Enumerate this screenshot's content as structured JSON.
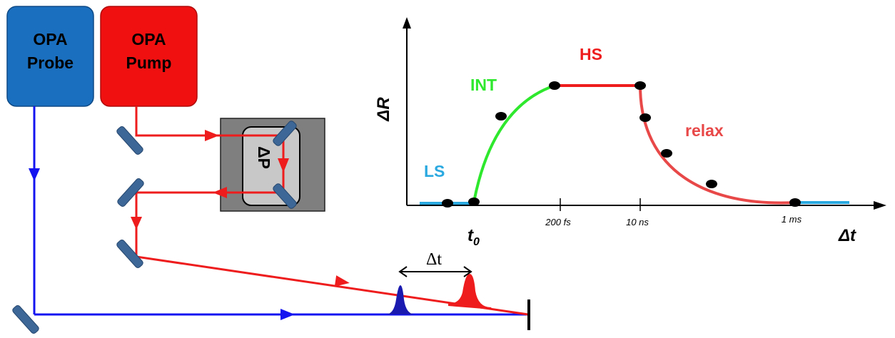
{
  "boxes": {
    "probe": {
      "line1": "OPA",
      "line2": "Probe"
    },
    "pump": {
      "line1": "OPA",
      "line2": "Pump"
    },
    "delay": {
      "label": "ΔP"
    }
  },
  "beam_delay_label": "Δt",
  "graph": {
    "y_axis_label": "ΔR",
    "x_axis_label": "Δt",
    "t0_label": "t",
    "t0_subscript": "0",
    "ticks": [
      "200 fs",
      "10 ns",
      "1 ms"
    ],
    "phases": {
      "ls": "LS",
      "int": "INT",
      "hs": "HS",
      "relax": "relax"
    }
  },
  "colors": {
    "probe_box": "#1b6fbf",
    "pump_box": "#f01010",
    "probe_beam": "#1414f0",
    "pump_beam": "#ee1c1c",
    "ls": "#2aa8e0",
    "int": "#2ee82e",
    "hs": "#ee1c1c",
    "relax": "#e84848",
    "mirror": "#3d6796",
    "delay_stage": "#7f7f7f"
  }
}
